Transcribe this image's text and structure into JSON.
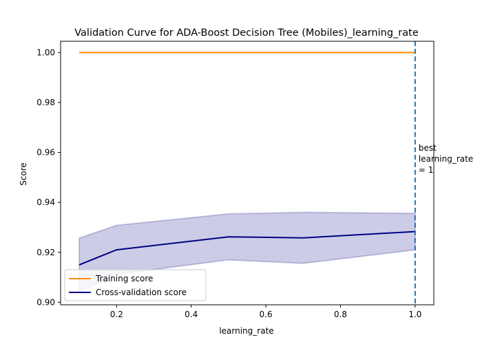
{
  "chart_data": {
    "type": "line",
    "title": "Validation Curve for ADA-Boost Decision Tree (Mobiles)_learning_rate",
    "xlabel": "learning_rate",
    "ylabel": "Score",
    "xlim": [
      0.05,
      1.05
    ],
    "ylim": [
      0.899,
      1.0045
    ],
    "xticks": [
      0.2,
      0.4,
      0.6,
      0.8,
      1.0
    ],
    "xtick_labels": [
      "0.2",
      "0.4",
      "0.6",
      "0.8",
      "1.0"
    ],
    "yticks": [
      0.9,
      0.92,
      0.94,
      0.96,
      0.98,
      1.0
    ],
    "ytick_labels": [
      "0.90",
      "0.92",
      "0.94",
      "0.96",
      "0.98",
      "1.00"
    ],
    "grid": false,
    "legend_position": "lower-left",
    "x": [
      0.1,
      0.2,
      0.5,
      0.7,
      1.0
    ],
    "series": [
      {
        "name": "Training score",
        "color": "#ff8c00",
        "values": [
          1.0,
          1.0,
          1.0,
          1.0,
          1.0
        ],
        "band_lower": [
          1.0,
          1.0,
          1.0,
          1.0,
          1.0
        ],
        "band_upper": [
          1.0,
          1.0,
          1.0,
          1.0,
          1.0
        ]
      },
      {
        "name": "Cross-validation score",
        "color": "#000080",
        "values": [
          0.915,
          0.921,
          0.9262,
          0.9258,
          0.9283
        ],
        "band_lower": [
          0.9043,
          0.9112,
          0.917,
          0.9156,
          0.921
        ],
        "band_upper": [
          0.9257,
          0.9308,
          0.9354,
          0.936,
          0.9356
        ]
      }
    ],
    "annotation": {
      "lines": [
        "best",
        "learning_rate",
        "= 1"
      ],
      "x": 1.0,
      "line_color": "#1f77b4",
      "line_style": "dashed"
    }
  }
}
